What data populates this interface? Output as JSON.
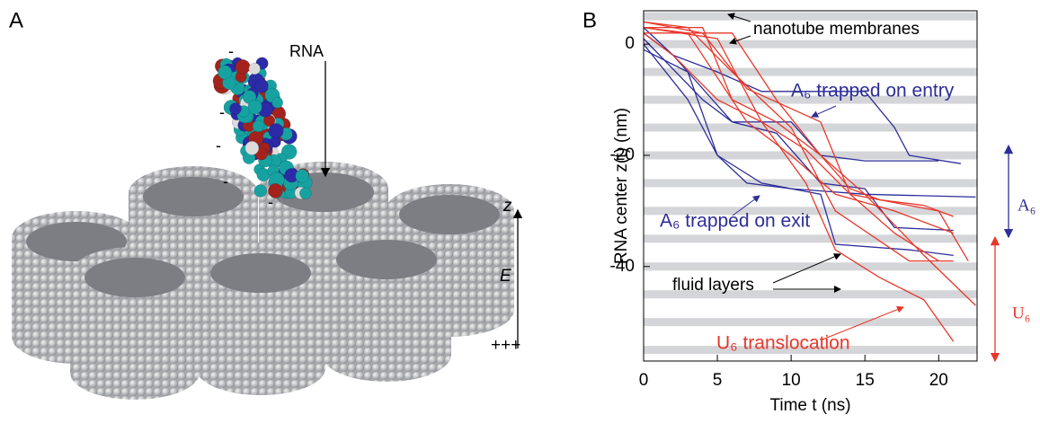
{
  "panel_a": {
    "label": "A",
    "rna_label": "RNA",
    "axis_label": "z",
    "field_label": "E",
    "plus_charges": "+++",
    "charges": [
      "-",
      "-",
      "-",
      "-",
      "-"
    ]
  },
  "chart_data": {
    "type": "line",
    "panel_label": "B",
    "x_label": "Time t (ns)",
    "y_label": "RNA center z(t) (nm)",
    "xlim": [
      0,
      22.6
    ],
    "ylim": [
      -57,
      6
    ],
    "xticks": [
      0,
      5,
      10,
      15,
      20
    ],
    "yticks": [
      0,
      -20,
      -40
    ],
    "membrane_positions": [
      5,
      0,
      -5,
      -10,
      -15,
      -20,
      -25,
      -30,
      -35,
      -40,
      -45,
      -50,
      -55
    ],
    "annotations": [
      "nanotube membranes",
      "A₆ trapped on entry",
      "A₆ trapped on exit",
      "fluid layers",
      "U₆ translocation",
      "A₆",
      "U₆"
    ],
    "series": [
      {
        "name": "A₆",
        "color": "#2d2d9a",
        "x": [
          0,
          2,
          5,
          8,
          15,
          17,
          18,
          21.5
        ],
        "values": [
          2,
          -2,
          -5,
          -8.5,
          -8.5,
          -15,
          -20,
          -21.5
        ]
      },
      {
        "name": "A₆",
        "color": "#2d2d9a",
        "x": [
          0,
          3,
          5,
          7,
          10,
          15,
          22.5
        ],
        "values": [
          0,
          -10,
          -20,
          -25,
          -26,
          -27,
          -27.5
        ]
      },
      {
        "name": "A₆",
        "color": "#2d2d9a",
        "x": [
          0,
          4,
          6,
          10,
          12,
          15,
          20
        ],
        "values": [
          1,
          -10,
          -14,
          -14,
          -20,
          -21,
          -21
        ]
      },
      {
        "name": "A₆",
        "color": "#2d2d9a",
        "x": [
          0,
          2,
          6,
          9,
          12,
          15,
          17,
          21
        ],
        "values": [
          3,
          -2,
          -14,
          -16,
          -25,
          -26,
          -33,
          -33.5
        ]
      },
      {
        "name": "A₆",
        "color": "#2d2d9a",
        "x": [
          0,
          3,
          5,
          8,
          12,
          13,
          18,
          21
        ],
        "values": [
          -1,
          -5,
          -20,
          -25,
          -27,
          -36,
          -37,
          -38
        ]
      },
      {
        "name": "U₆",
        "color": "#e8372a",
        "x": [
          0,
          4,
          6,
          9,
          12,
          14,
          16,
          19,
          21
        ],
        "values": [
          3,
          3,
          -10,
          -14,
          -20,
          -26,
          -28,
          -29,
          -31
        ]
      },
      {
        "name": "U₆",
        "color": "#e8372a",
        "x": [
          0,
          3,
          6,
          10,
          13,
          18,
          21
        ],
        "values": [
          4,
          3,
          -5,
          -15,
          -30,
          -39,
          -39
        ]
      },
      {
        "name": "U₆",
        "color": "#e8372a",
        "x": [
          0,
          2,
          5,
          8,
          11,
          13,
          16,
          19,
          21
        ],
        "values": [
          2,
          -2,
          -10,
          -14,
          -25,
          -37,
          -42,
          -46,
          -53.5
        ]
      },
      {
        "name": "U₆",
        "color": "#e8372a",
        "x": [
          0,
          5,
          8,
          11,
          14,
          17,
          20
        ],
        "values": [
          3,
          1,
          -14,
          -19,
          -27,
          -34,
          -39
        ]
      },
      {
        "name": "U₆",
        "color": "#e8372a",
        "x": [
          0,
          6,
          9,
          12,
          15,
          19,
          22.5
        ],
        "values": [
          2,
          2,
          -10,
          -20,
          -27,
          -38,
          -47
        ]
      },
      {
        "name": "U₆",
        "color": "#e8372a",
        "x": [
          0,
          3,
          7,
          10,
          13,
          17,
          21
        ],
        "values": [
          3,
          2,
          -14,
          -20,
          -27,
          -30,
          -34
        ]
      },
      {
        "name": "U₆",
        "color": "#e8372a",
        "x": [
          0,
          4,
          7,
          12,
          14,
          20,
          22
        ],
        "values": [
          4,
          2,
          -8,
          -14,
          -27,
          -30,
          -39
        ]
      }
    ]
  }
}
